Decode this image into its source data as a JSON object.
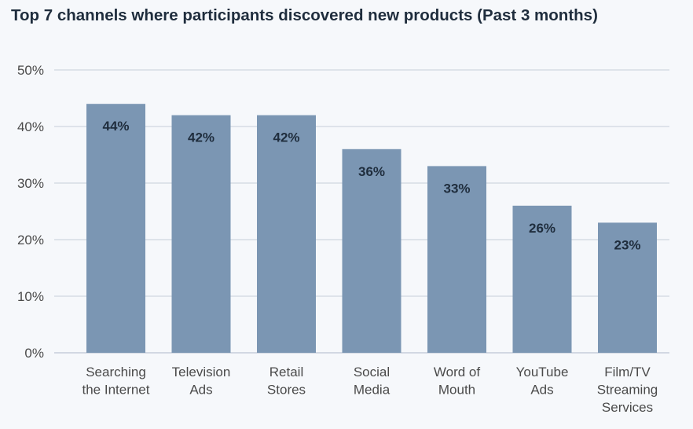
{
  "chart_data": {
    "type": "bar",
    "title": "Top 7 channels where participants discovered new products (Past 3 months)",
    "categories": [
      [
        "Searching",
        "the Internet"
      ],
      [
        "Television",
        "Ads"
      ],
      [
        "Retail",
        "Stores"
      ],
      [
        "Social",
        "Media"
      ],
      [
        "Word of",
        "Mouth"
      ],
      [
        "YouTube",
        "Ads"
      ],
      [
        "Film/TV",
        "Streaming",
        "Services"
      ]
    ],
    "values": [
      44,
      42,
      42,
      36,
      33,
      26,
      23
    ],
    "data_labels": [
      "44%",
      "42%",
      "42%",
      "36%",
      "33%",
      "26%",
      "23%"
    ],
    "xlabel": "",
    "ylabel": "",
    "ylim": [
      0,
      50
    ],
    "yticks": [
      "0%",
      "10%",
      "20%",
      "30%",
      "40%",
      "50%"
    ],
    "grid": true,
    "legend": "none",
    "colors": {
      "bar": "#7b96b3",
      "label": "#1f2d3d",
      "grid": "#c5ced9",
      "axis_text": "#4a4a4a"
    }
  }
}
